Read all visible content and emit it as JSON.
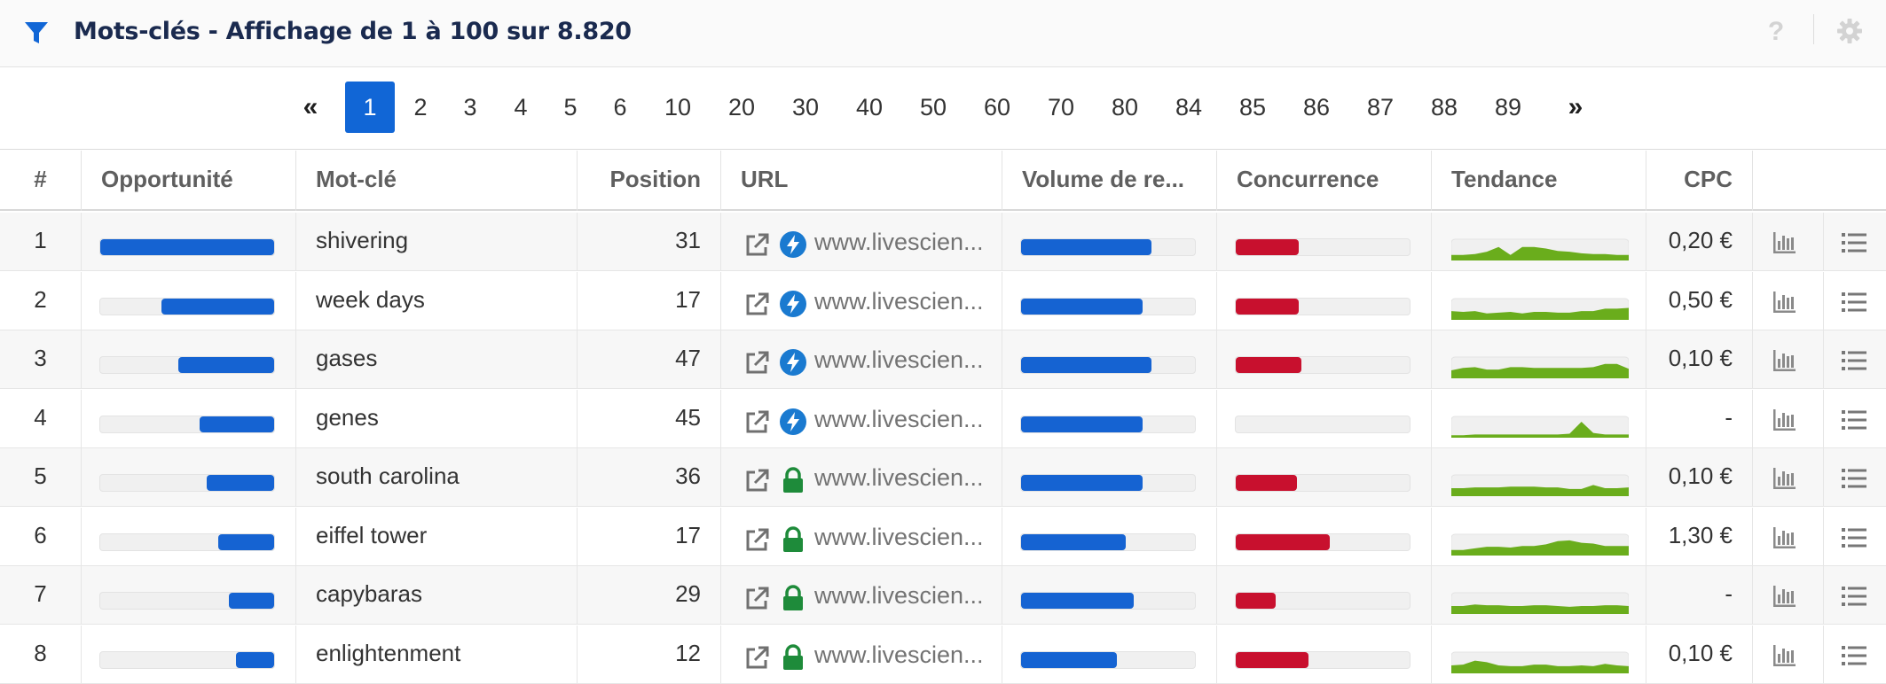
{
  "header": {
    "title": "Mots-clés - Affichage de 1 à 100 sur 8.820",
    "help_label": "?"
  },
  "pagination": {
    "prev_label": "«",
    "next_label": "»",
    "current": "1",
    "pages": [
      "1",
      "2",
      "3",
      "4",
      "5",
      "6",
      "10",
      "20",
      "30",
      "40",
      "50",
      "60",
      "70",
      "80",
      "84",
      "85",
      "86",
      "87",
      "88",
      "89"
    ]
  },
  "table": {
    "columns": {
      "index": "#",
      "opportunity": "Opportunité",
      "keyword": "Mot-clé",
      "position": "Position",
      "url": "URL",
      "volume": "Volume de re...",
      "competition": "Concurrence",
      "trend": "Tendance",
      "cpc": "CPC"
    },
    "rows": [
      {
        "index": "1",
        "keyword": "shivering",
        "position": "31",
        "url": "www.livescien...",
        "badge": "amp",
        "cpc": "0,20 €",
        "opportunity": 1.0,
        "volume": 0.75,
        "competition": 0.36,
        "trend": [
          0.35,
          0.35,
          0.4,
          0.55,
          0.85,
          0.35,
          0.85,
          0.85,
          0.75,
          0.6,
          0.55,
          0.45,
          0.4,
          0.4,
          0.35,
          0.35
        ]
      },
      {
        "index": "2",
        "keyword": "week days",
        "position": "17",
        "url": "www.livescien...",
        "badge": "amp",
        "cpc": "0,50 €",
        "opportunity": 0.65,
        "volume": 0.7,
        "competition": 0.36,
        "trend": [
          0.55,
          0.5,
          0.55,
          0.4,
          0.45,
          0.5,
          0.4,
          0.5,
          0.5,
          0.45,
          0.45,
          0.55,
          0.55,
          0.7,
          0.7,
          0.75
        ]
      },
      {
        "index": "3",
        "keyword": "gases",
        "position": "47",
        "url": "www.livescien...",
        "badge": "amp",
        "cpc": "0,10 €",
        "opportunity": 0.55,
        "volume": 0.75,
        "competition": 0.38,
        "trend": [
          0.5,
          0.65,
          0.7,
          0.55,
          0.55,
          0.7,
          0.7,
          0.65,
          0.65,
          0.65,
          0.65,
          0.65,
          0.7,
          0.9,
          0.9,
          0.6
        ]
      },
      {
        "index": "4",
        "keyword": "genes",
        "position": "45",
        "url": "www.livescien...",
        "badge": "amp",
        "cpc": "-",
        "opportunity": 0.43,
        "volume": 0.7,
        "competition": 0.0,
        "trend": [
          0.15,
          0.15,
          0.2,
          0.2,
          0.2,
          0.2,
          0.2,
          0.2,
          0.2,
          0.2,
          0.25,
          1.0,
          0.3,
          0.2,
          0.2,
          0.2
        ]
      },
      {
        "index": "5",
        "keyword": "south carolina",
        "position": "36",
        "url": "www.livescien...",
        "badge": "lock",
        "cpc": "0,10 €",
        "opportunity": 0.39,
        "volume": 0.7,
        "competition": 0.35,
        "trend": [
          0.5,
          0.5,
          0.55,
          0.55,
          0.55,
          0.6,
          0.6,
          0.6,
          0.55,
          0.55,
          0.45,
          0.45,
          0.7,
          0.5,
          0.5,
          0.55
        ]
      },
      {
        "index": "6",
        "keyword": "eiffel tower",
        "position": "17",
        "url": "www.livescien...",
        "badge": "lock",
        "cpc": "1,30 €",
        "opportunity": 0.32,
        "volume": 0.6,
        "competition": 0.54,
        "trend": [
          0.35,
          0.35,
          0.45,
          0.55,
          0.55,
          0.5,
          0.6,
          0.6,
          0.7,
          0.9,
          0.95,
          0.8,
          0.75,
          0.6,
          0.6,
          0.6
        ]
      },
      {
        "index": "7",
        "keyword": "capybaras",
        "position": "29",
        "url": "www.livescien...",
        "badge": "lock",
        "cpc": "-",
        "opportunity": 0.26,
        "volume": 0.65,
        "competition": 0.23,
        "trend": [
          0.5,
          0.5,
          0.6,
          0.55,
          0.55,
          0.5,
          0.5,
          0.55,
          0.55,
          0.5,
          0.45,
          0.5,
          0.5,
          0.55,
          0.55,
          0.5
        ]
      },
      {
        "index": "8",
        "keyword": "enlightenment",
        "position": "12",
        "url": "www.livescien...",
        "badge": "lock",
        "cpc": "0,10 €",
        "opportunity": 0.22,
        "volume": 0.55,
        "competition": 0.42,
        "trend": [
          0.5,
          0.55,
          0.8,
          0.7,
          0.5,
          0.45,
          0.45,
          0.55,
          0.55,
          0.45,
          0.45,
          0.5,
          0.45,
          0.6,
          0.5,
          0.45
        ]
      }
    ]
  },
  "colors": {
    "accent": "#1166d6",
    "bar_blue": "#1563d2",
    "bar_red": "#c8102e",
    "trend_green": "#6aad1c",
    "amp_blue": "#1a7ad0",
    "lock_green": "#1e8b3a"
  },
  "icons": {
    "filter": "filter-icon",
    "help": "help-icon",
    "settings": "gear-icon",
    "external": "external-link-icon",
    "amp": "amp-lightning-icon",
    "lock": "lock-icon",
    "chart": "bar-chart-icon",
    "list": "list-icon"
  }
}
